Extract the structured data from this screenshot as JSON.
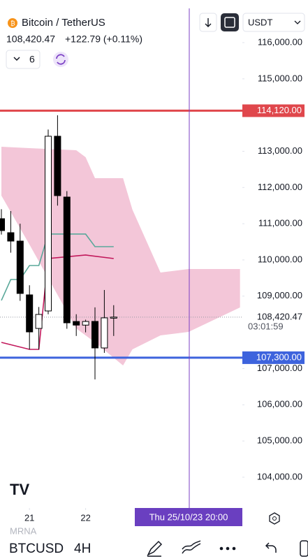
{
  "chart_data": {
    "type": "candlestick",
    "title": "Bitcoin / TetherUS",
    "price": "108,420.47",
    "change": "+122.79 (+0.11%)",
    "quote_currency": "USDT",
    "xlim": [
      -0.15,
      25.75
    ],
    "ylim": [
      103285,
      116984
    ],
    "xticks": [
      {
        "value": 3,
        "label": "21"
      },
      {
        "value": 9,
        "label": "22"
      }
    ],
    "yticks": [
      {
        "value": 104000,
        "label": "104,000.00"
      },
      {
        "value": 105000,
        "label": "105,000.00"
      },
      {
        "value": 106000,
        "label": "106,000.00"
      },
      {
        "value": 107000,
        "label": "107,000.00"
      },
      {
        "value": 109000,
        "label": "109,000.00"
      },
      {
        "value": 110000,
        "label": "110,000.00"
      },
      {
        "value": 111000,
        "label": "111,000.00"
      },
      {
        "value": 112000,
        "label": "112,000.00"
      },
      {
        "value": 113000,
        "label": "113,000.00"
      },
      {
        "value": 115000,
        "label": "115,000.00"
      },
      {
        "value": 116000,
        "label": "116,000.00"
      }
    ],
    "open": [
      111138,
      110752,
      110520,
      109035,
      108108,
      108591,
      113415,
      111736,
      108300,
      108200,
      108302,
      107569,
      108400
    ],
    "high": [
      111400,
      111350,
      111000,
      109300,
      108700,
      113600,
      113994,
      111900,
      108500,
      108350,
      108690,
      109170,
      108750
    ],
    "low": [
      110700,
      110200,
      108870,
      107530,
      107530,
      108500,
      111500,
      108100,
      107900,
      108000,
      106700,
      107434,
      107900
    ],
    "close": [
      110810,
      110520,
      109074,
      108012,
      108495,
      113415,
      111775,
      108263,
      108200,
      108300,
      107569,
      108400,
      108420.47
    ],
    "up_color": "#ffffff",
    "down_color": "#000000",
    "cloud": {
      "color": "#f3c6d8",
      "x": [
        0,
        3,
        8,
        9,
        10,
        13,
        14,
        17,
        20,
        25.5
      ],
      "upper": [
        113125,
        113087,
        113029,
        112836,
        112257,
        112257,
        111389,
        109652,
        109749,
        109749
      ],
      "lower": [
        111775,
        110424,
        108109,
        107916,
        107723,
        107086,
        107530,
        107916,
        108012,
        108688
      ]
    },
    "lines": [
      {
        "color": "#5aa89a",
        "x": [
          0,
          1,
          2,
          3,
          4,
          5,
          7,
          9,
          10,
          12
        ],
        "values": [
          108881,
          109459,
          109459,
          109845,
          109845,
          110714,
          110714,
          110714,
          110366,
          110366
        ]
      },
      {
        "color": "#c2185b",
        "x": [
          0,
          3,
          4,
          5,
          9,
          12
        ],
        "values": [
          107723,
          107530,
          107530,
          110038,
          110135,
          110038
        ]
      }
    ],
    "levels": [
      {
        "value": 114120,
        "label": "114,120.00",
        "color": "#e0474c"
      },
      {
        "value": 107300,
        "label": "107,300.00",
        "color": "#3d63dd"
      }
    ],
    "current_price": {
      "value": 108420.47,
      "label": "108,420.47",
      "countdown": "03:01:59"
    },
    "crosshair_label": "Thu 25/10/23  20:00"
  },
  "toolbar": {
    "indicator_count": 6,
    "symbol": "BTCUSD",
    "interval": "4H",
    "watch_symbol": "MRNA"
  }
}
